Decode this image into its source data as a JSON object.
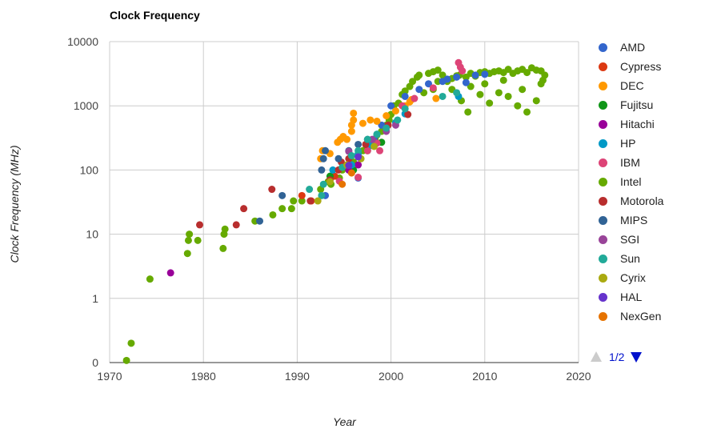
{
  "chart_data": {
    "type": "scatter",
    "title": "Clock Frequency",
    "xlabel": "Year",
    "ylabel": "Clock Frequency (MHz)",
    "xlim": [
      1970,
      2020
    ],
    "x_ticks": [
      1970,
      1980,
      1990,
      2000,
      2010,
      2020
    ],
    "x_tick_labels": [
      "1970",
      "1980",
      "1990",
      "2000",
      "2010",
      "2020"
    ],
    "y_scale": "log",
    "y_ticks": [
      0.1,
      1,
      10,
      100,
      1000,
      10000
    ],
    "y_tick_labels": [
      "0",
      "1",
      "10",
      "100",
      "1000",
      "10000"
    ],
    "grid": true,
    "legend_position": "right",
    "legend_page": "1/2",
    "series": [
      {
        "name": "AMD",
        "color": "#3366cc",
        "points": [
          [
            1993,
            40
          ],
          [
            1995.5,
            100
          ],
          [
            1996.5,
            75
          ],
          [
            1998.2,
            300
          ],
          [
            1999,
            500
          ],
          [
            2000,
            1000
          ],
          [
            2001.5,
            1400
          ],
          [
            2003,
            1800
          ],
          [
            2004,
            2200
          ],
          [
            2005.5,
            2400
          ],
          [
            2006,
            2600
          ],
          [
            2007,
            2800
          ],
          [
            2008,
            2300
          ],
          [
            2009,
            3000
          ],
          [
            2010,
            3100
          ]
        ]
      },
      {
        "name": "Cypress",
        "color": "#dc3912",
        "points": [
          [
            1990.5,
            40
          ],
          [
            1991.5,
            33
          ],
          [
            1994,
            80
          ]
        ]
      },
      {
        "name": "DEC",
        "color": "#ff9900",
        "points": [
          [
            1992.5,
            150
          ],
          [
            1992.7,
            200
          ],
          [
            1993.5,
            180
          ],
          [
            1994.3,
            270
          ],
          [
            1994.6,
            300
          ],
          [
            1994.9,
            333
          ],
          [
            1995.3,
            300
          ],
          [
            1995.8,
            400
          ],
          [
            1995.8,
            500
          ],
          [
            1996,
            600
          ],
          [
            1996,
            767
          ],
          [
            1997,
            533
          ],
          [
            1997.8,
            600
          ],
          [
            1998.5,
            575
          ],
          [
            1999.5,
            700
          ],
          [
            2000.5,
            833
          ],
          [
            2001.5,
            1000
          ],
          [
            2002,
            1150
          ],
          [
            2002.2,
            1250
          ],
          [
            2004.8,
            1300
          ]
        ]
      },
      {
        "name": "Fujitsu",
        "color": "#109618",
        "points": [
          [
            1993.5,
            80
          ],
          [
            1996,
            100
          ],
          [
            1997.5,
            200
          ],
          [
            1999,
            270
          ]
        ]
      },
      {
        "name": "Hitachi",
        "color": "#990099",
        "points": [
          [
            1976.5,
            2.5
          ],
          [
            1995.5,
            100
          ],
          [
            1996.5,
            120
          ]
        ]
      },
      {
        "name": "HP",
        "color": "#0099c6",
        "points": [
          [
            1993.8,
            100
          ],
          [
            1995.8,
            120
          ],
          [
            1996.5,
            180
          ],
          [
            1997.8,
            240
          ],
          [
            1998.5,
            360
          ],
          [
            2000.5,
            550
          ],
          [
            2001.5,
            750
          ],
          [
            2007.2,
            1400
          ]
        ]
      },
      {
        "name": "IBM",
        "color": "#dd4477",
        "points": [
          [
            1994.5,
            67
          ],
          [
            1996.5,
            77
          ],
          [
            1997.5,
            200
          ],
          [
            1998.5,
            262
          ],
          [
            1998.8,
            200
          ],
          [
            1999.5,
            450
          ],
          [
            2001.2,
            1000
          ],
          [
            2002.5,
            1300
          ],
          [
            2004.5,
            1900
          ],
          [
            2007.2,
            4700
          ],
          [
            2007.4,
            4000
          ],
          [
            2007.6,
            3500
          ]
        ]
      },
      {
        "name": "Intel",
        "color": "#66aa00",
        "points": [
          [
            1971.8,
            0.108
          ],
          [
            1972.3,
            0.2
          ],
          [
            1974.3,
            2
          ],
          [
            1978.3,
            5
          ],
          [
            1978.4,
            8
          ],
          [
            1978.5,
            10
          ],
          [
            1979.4,
            8
          ],
          [
            1982.1,
            6
          ],
          [
            1982.2,
            10
          ],
          [
            1982.3,
            12
          ],
          [
            1985.5,
            16
          ],
          [
            1987.4,
            20
          ],
          [
            1988.4,
            25
          ],
          [
            1989.4,
            25
          ],
          [
            1989.6,
            33
          ],
          [
            1990.5,
            33
          ],
          [
            1992.5,
            50
          ],
          [
            1993.3,
            66
          ],
          [
            1993.6,
            60
          ],
          [
            1994.5,
            75
          ],
          [
            1994.8,
            100
          ],
          [
            1995.5,
            120
          ],
          [
            1996,
            133
          ],
          [
            1996.5,
            166
          ],
          [
            1997,
            200
          ],
          [
            1997.5,
            233
          ],
          [
            1997.8,
            266
          ],
          [
            1998.3,
            300
          ],
          [
            1998.5,
            350
          ],
          [
            1999,
            400
          ],
          [
            1999.5,
            500
          ],
          [
            1999.8,
            600
          ],
          [
            2000,
            733
          ],
          [
            2000.3,
            1000
          ],
          [
            2000.8,
            1100
          ],
          [
            2001.2,
            1500
          ],
          [
            2001.5,
            1700
          ],
          [
            2002,
            2000
          ],
          [
            2002.3,
            2400
          ],
          [
            2002.8,
            2800
          ],
          [
            2003,
            3000
          ],
          [
            2004,
            3200
          ],
          [
            2004.5,
            3400
          ],
          [
            2005,
            3600
          ],
          [
            2005.5,
            3000
          ],
          [
            2006,
            2400
          ],
          [
            2006.5,
            2660
          ],
          [
            2007,
            2930
          ],
          [
            2007.3,
            3000
          ],
          [
            2008,
            2800
          ],
          [
            2008.5,
            3200
          ],
          [
            2009,
            2900
          ],
          [
            2009.5,
            3300
          ],
          [
            2010,
            3400
          ],
          [
            2010.5,
            3200
          ],
          [
            2011,
            3400
          ],
          [
            2011.5,
            3500
          ],
          [
            2012,
            3300
          ],
          [
            2012.5,
            3700
          ],
          [
            2013,
            3200
          ],
          [
            2013.5,
            3500
          ],
          [
            2014,
            3700
          ],
          [
            2014.5,
            3300
          ],
          [
            2015,
            3900
          ],
          [
            2015.5,
            3600
          ],
          [
            2016,
            3500
          ],
          [
            2016.4,
            3000
          ],
          [
            2004.5,
            1800
          ],
          [
            2006.5,
            1800
          ],
          [
            2007.5,
            1200
          ],
          [
            2008.2,
            800
          ],
          [
            2009.5,
            1500
          ],
          [
            2010.5,
            1100
          ],
          [
            2011.5,
            1600
          ],
          [
            2012.5,
            1400
          ],
          [
            2013.5,
            1000
          ],
          [
            2014.5,
            800
          ],
          [
            2015.5,
            1200
          ],
          [
            2016,
            2200
          ],
          [
            2003.5,
            1600
          ],
          [
            2005,
            2400
          ],
          [
            2008.5,
            2000
          ],
          [
            2010,
            2200
          ],
          [
            2012,
            2500
          ],
          [
            2014,
            1800
          ],
          [
            2016.2,
            2500
          ]
        ]
      },
      {
        "name": "Motorola",
        "color": "#b82e2e",
        "points": [
          [
            1979.6,
            14
          ],
          [
            1983.5,
            14
          ],
          [
            1984.3,
            25
          ],
          [
            1987.3,
            50
          ],
          [
            1991.4,
            33
          ],
          [
            1993.5,
            70
          ],
          [
            1994.4,
            100
          ],
          [
            1994.7,
            133
          ],
          [
            1995.5,
            150
          ],
          [
            1997.3,
            250
          ],
          [
            1999.7,
            500
          ],
          [
            2001.8,
            733
          ]
        ]
      },
      {
        "name": "MIPS",
        "color": "#316395",
        "points": [
          [
            1986,
            16
          ],
          [
            1988.4,
            40
          ],
          [
            1992.6,
            100
          ],
          [
            1992.8,
            150
          ],
          [
            1993,
            200
          ],
          [
            1994.4,
            150
          ],
          [
            1995.5,
            200
          ],
          [
            1996.5,
            250
          ],
          [
            1997.5,
            300
          ]
        ]
      },
      {
        "name": "SGI",
        "color": "#994499",
        "points": [
          [
            1995.5,
            195
          ],
          [
            1998,
            300
          ],
          [
            1999.5,
            400
          ],
          [
            2000.5,
            500
          ]
        ]
      },
      {
        "name": "Sun",
        "color": "#22aa99",
        "points": [
          [
            1991.3,
            50
          ],
          [
            1992.6,
            40
          ],
          [
            1992.8,
            60
          ],
          [
            1994.8,
            110
          ],
          [
            1995.8,
            167
          ],
          [
            1996.5,
            200
          ],
          [
            1997.5,
            300
          ],
          [
            1998.5,
            360
          ],
          [
            1999.5,
            450
          ],
          [
            2000.7,
            600
          ],
          [
            2001.5,
            900
          ],
          [
            2005.5,
            1400
          ],
          [
            2007,
            1600
          ]
        ]
      },
      {
        "name": "Cyrix",
        "color": "#aaaa11",
        "points": [
          [
            1992.2,
            33
          ],
          [
            1993.5,
            66
          ],
          [
            1995.3,
            120
          ],
          [
            1996.8,
            150
          ],
          [
            1998.2,
            233
          ]
        ]
      },
      {
        "name": "HAL",
        "color": "#6633cc",
        "points": [
          [
            1995.5,
            118
          ],
          [
            1996.5,
            160
          ]
        ]
      },
      {
        "name": "NexGen",
        "color": "#e67300",
        "points": [
          [
            1994.8,
            60
          ],
          [
            1995.8,
            90
          ]
        ]
      }
    ]
  }
}
